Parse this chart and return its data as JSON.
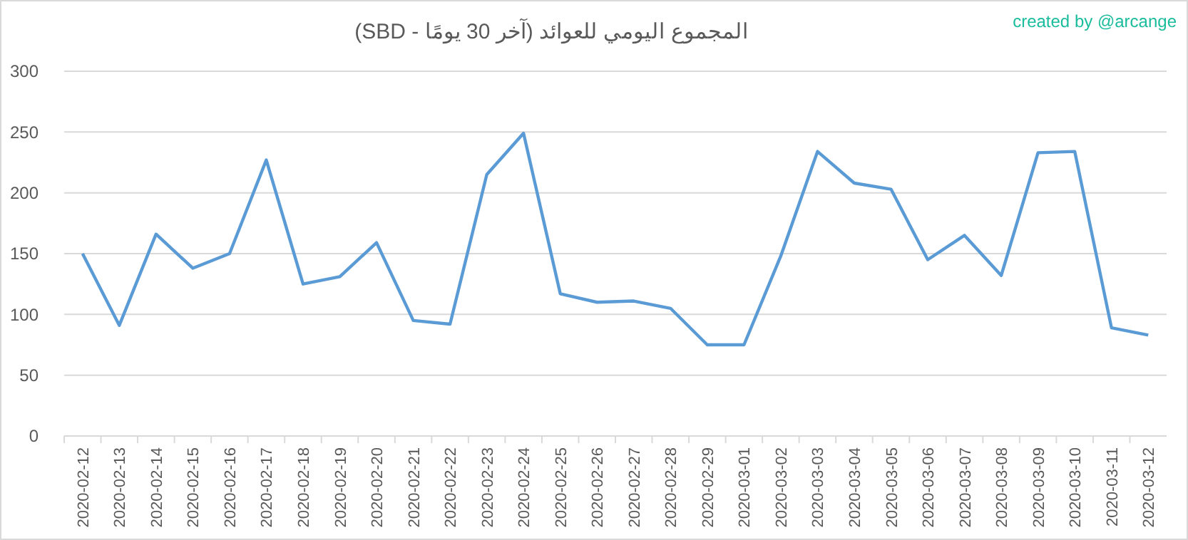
{
  "chart_data": {
    "type": "line",
    "title": "المجموع اليومي للعوائد (آخر 30 يومًا - SBD)",
    "annotations": [
      "created by @arcange"
    ],
    "categories": [
      "2020-02-12",
      "2020-02-13",
      "2020-02-14",
      "2020-02-15",
      "2020-02-16",
      "2020-02-17",
      "2020-02-18",
      "2020-02-19",
      "2020-02-20",
      "2020-02-21",
      "2020-02-22",
      "2020-02-23",
      "2020-02-24",
      "2020-02-25",
      "2020-02-26",
      "2020-02-27",
      "2020-02-28",
      "2020-02-29",
      "2020-03-01",
      "2020-03-02",
      "2020-03-03",
      "2020-03-04",
      "2020-03-05",
      "2020-03-06",
      "2020-03-07",
      "2020-03-08",
      "2020-03-09",
      "2020-03-10",
      "2020-03-11",
      "2020-03-12"
    ],
    "series": [
      {
        "color": "#5b9bd5",
        "values": [
          150,
          91,
          166,
          138,
          150,
          227,
          125,
          131,
          159,
          95,
          92,
          215,
          249,
          117,
          110,
          111,
          105,
          75,
          75,
          148,
          234,
          208,
          203,
          145,
          165,
          132,
          233,
          234,
          89,
          83
        ]
      }
    ],
    "ylim": [
      0,
      300
    ],
    "yticks": [
      0,
      50,
      100,
      150,
      200,
      250,
      300
    ],
    "grid": "y",
    "marker": "none",
    "line_style": "solid"
  }
}
